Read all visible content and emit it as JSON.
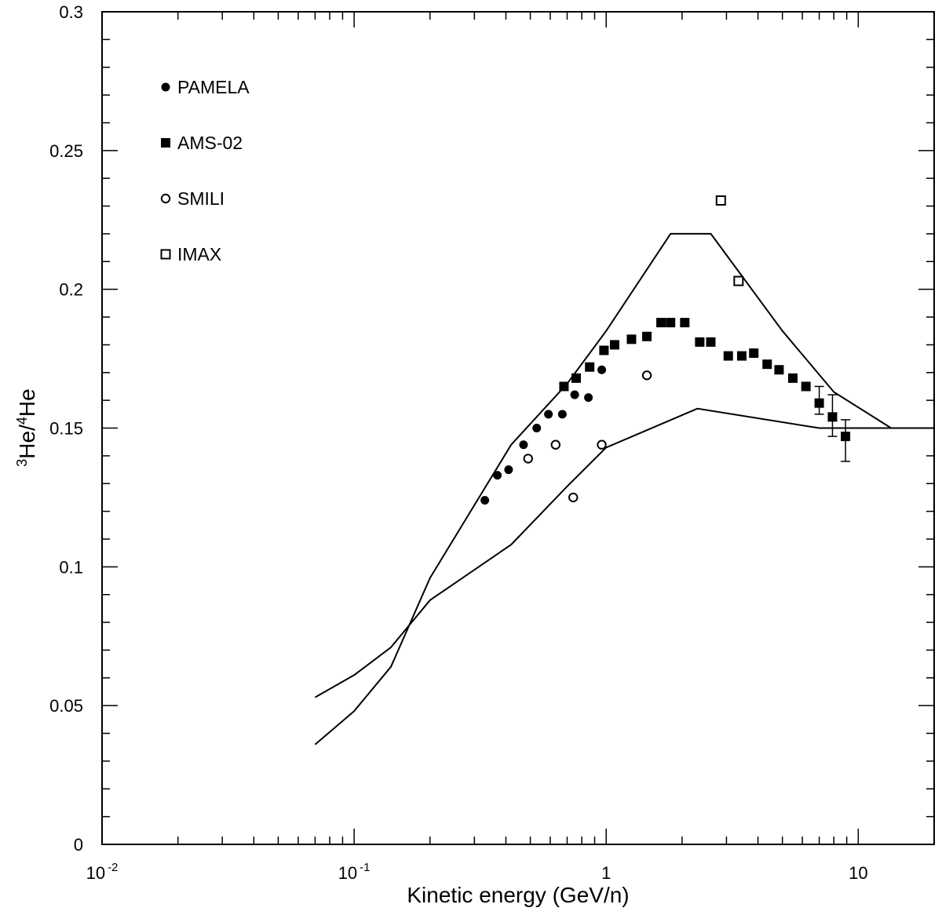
{
  "chart_data": {
    "type": "scatter",
    "title": "",
    "xlabel": "Kinetic energy (GeV/n)",
    "ylabel_parts": {
      "sup_a": "3",
      "base_a": "He/",
      "sup_b": "4",
      "base_b": "He"
    },
    "xscale": "log",
    "xlim": [
      0.01,
      20
    ],
    "ylim": [
      0,
      0.3
    ],
    "x_ticks": [
      {
        "value": 0.01,
        "base": "10",
        "exp": "-2"
      },
      {
        "value": 0.1,
        "base": "10",
        "exp": "-1"
      },
      {
        "value": 1,
        "base": "1",
        "exp": ""
      },
      {
        "value": 10,
        "base": "10",
        "exp": ""
      }
    ],
    "y_ticks": [
      {
        "value": 0,
        "label": "0"
      },
      {
        "value": 0.05,
        "label": "0.05"
      },
      {
        "value": 0.1,
        "label": "0.1"
      },
      {
        "value": 0.15,
        "label": "0.15"
      },
      {
        "value": 0.2,
        "label": "0.2"
      },
      {
        "value": 0.25,
        "label": "0.25"
      },
      {
        "value": 0.3,
        "label": "0.3"
      }
    ],
    "legend_position": "top-left",
    "series": [
      {
        "name": "PAMELA",
        "marker": "filled-circle",
        "points": [
          [
            0.33,
            0.124
          ],
          [
            0.37,
            0.133
          ],
          [
            0.41,
            0.135
          ],
          [
            0.47,
            0.144
          ],
          [
            0.53,
            0.15
          ],
          [
            0.59,
            0.155
          ],
          [
            0.67,
            0.155
          ],
          [
            0.75,
            0.162
          ],
          [
            0.85,
            0.161
          ],
          [
            0.96,
            0.171
          ]
        ]
      },
      {
        "name": "AMS-02",
        "marker": "filled-square",
        "points": [
          [
            0.68,
            0.165
          ],
          [
            0.76,
            0.168
          ],
          [
            0.86,
            0.172
          ],
          [
            0.98,
            0.178
          ],
          [
            1.08,
            0.18
          ],
          [
            1.26,
            0.182
          ],
          [
            1.45,
            0.183
          ],
          [
            1.65,
            0.188
          ],
          [
            1.8,
            0.188
          ],
          [
            2.05,
            0.188
          ],
          [
            2.35,
            0.181
          ],
          [
            2.6,
            0.181
          ],
          [
            3.05,
            0.176
          ],
          [
            3.45,
            0.176
          ],
          [
            3.85,
            0.177
          ],
          [
            4.35,
            0.173
          ],
          [
            4.85,
            0.171
          ],
          [
            5.5,
            0.168
          ],
          [
            6.2,
            0.165
          ],
          [
            7.0,
            0.159
          ],
          [
            7.9,
            0.154
          ],
          [
            8.9,
            0.147
          ]
        ],
        "errors": [
          {
            "x": 7.0,
            "lo": 0.155,
            "hi": 0.165
          },
          {
            "x": 7.9,
            "lo": 0.147,
            "hi": 0.162
          },
          {
            "x": 8.9,
            "lo": 0.138,
            "hi": 0.153
          }
        ]
      },
      {
        "name": "SMILI",
        "marker": "open-circle",
        "points": [
          [
            0.49,
            0.139
          ],
          [
            0.63,
            0.144
          ],
          [
            0.74,
            0.125
          ],
          [
            0.96,
            0.144
          ],
          [
            1.45,
            0.169
          ]
        ]
      },
      {
        "name": "IMAX",
        "marker": "open-square",
        "points": [
          [
            2.85,
            0.232
          ],
          [
            3.35,
            0.203
          ]
        ]
      }
    ],
    "curves": [
      {
        "name": "upper-bound",
        "points": [
          [
            0.07,
            0.036
          ],
          [
            0.1,
            0.048
          ],
          [
            0.14,
            0.064
          ],
          [
            0.2,
            0.096
          ],
          [
            0.42,
            0.144
          ],
          [
            0.7,
            0.166
          ],
          [
            1.0,
            0.185
          ],
          [
            1.8,
            0.22
          ],
          [
            2.6,
            0.22
          ],
          [
            5.0,
            0.185
          ],
          [
            8.0,
            0.163
          ],
          [
            13.5,
            0.15
          ],
          [
            20,
            0.15
          ]
        ]
      },
      {
        "name": "lower-bound",
        "points": [
          [
            0.07,
            0.053
          ],
          [
            0.1,
            0.061
          ],
          [
            0.14,
            0.071
          ],
          [
            0.2,
            0.088
          ],
          [
            0.42,
            0.108
          ],
          [
            0.7,
            0.129
          ],
          [
            1.0,
            0.143
          ],
          [
            2.3,
            0.157
          ],
          [
            7.0,
            0.15
          ],
          [
            20,
            0.15
          ]
        ]
      }
    ]
  }
}
